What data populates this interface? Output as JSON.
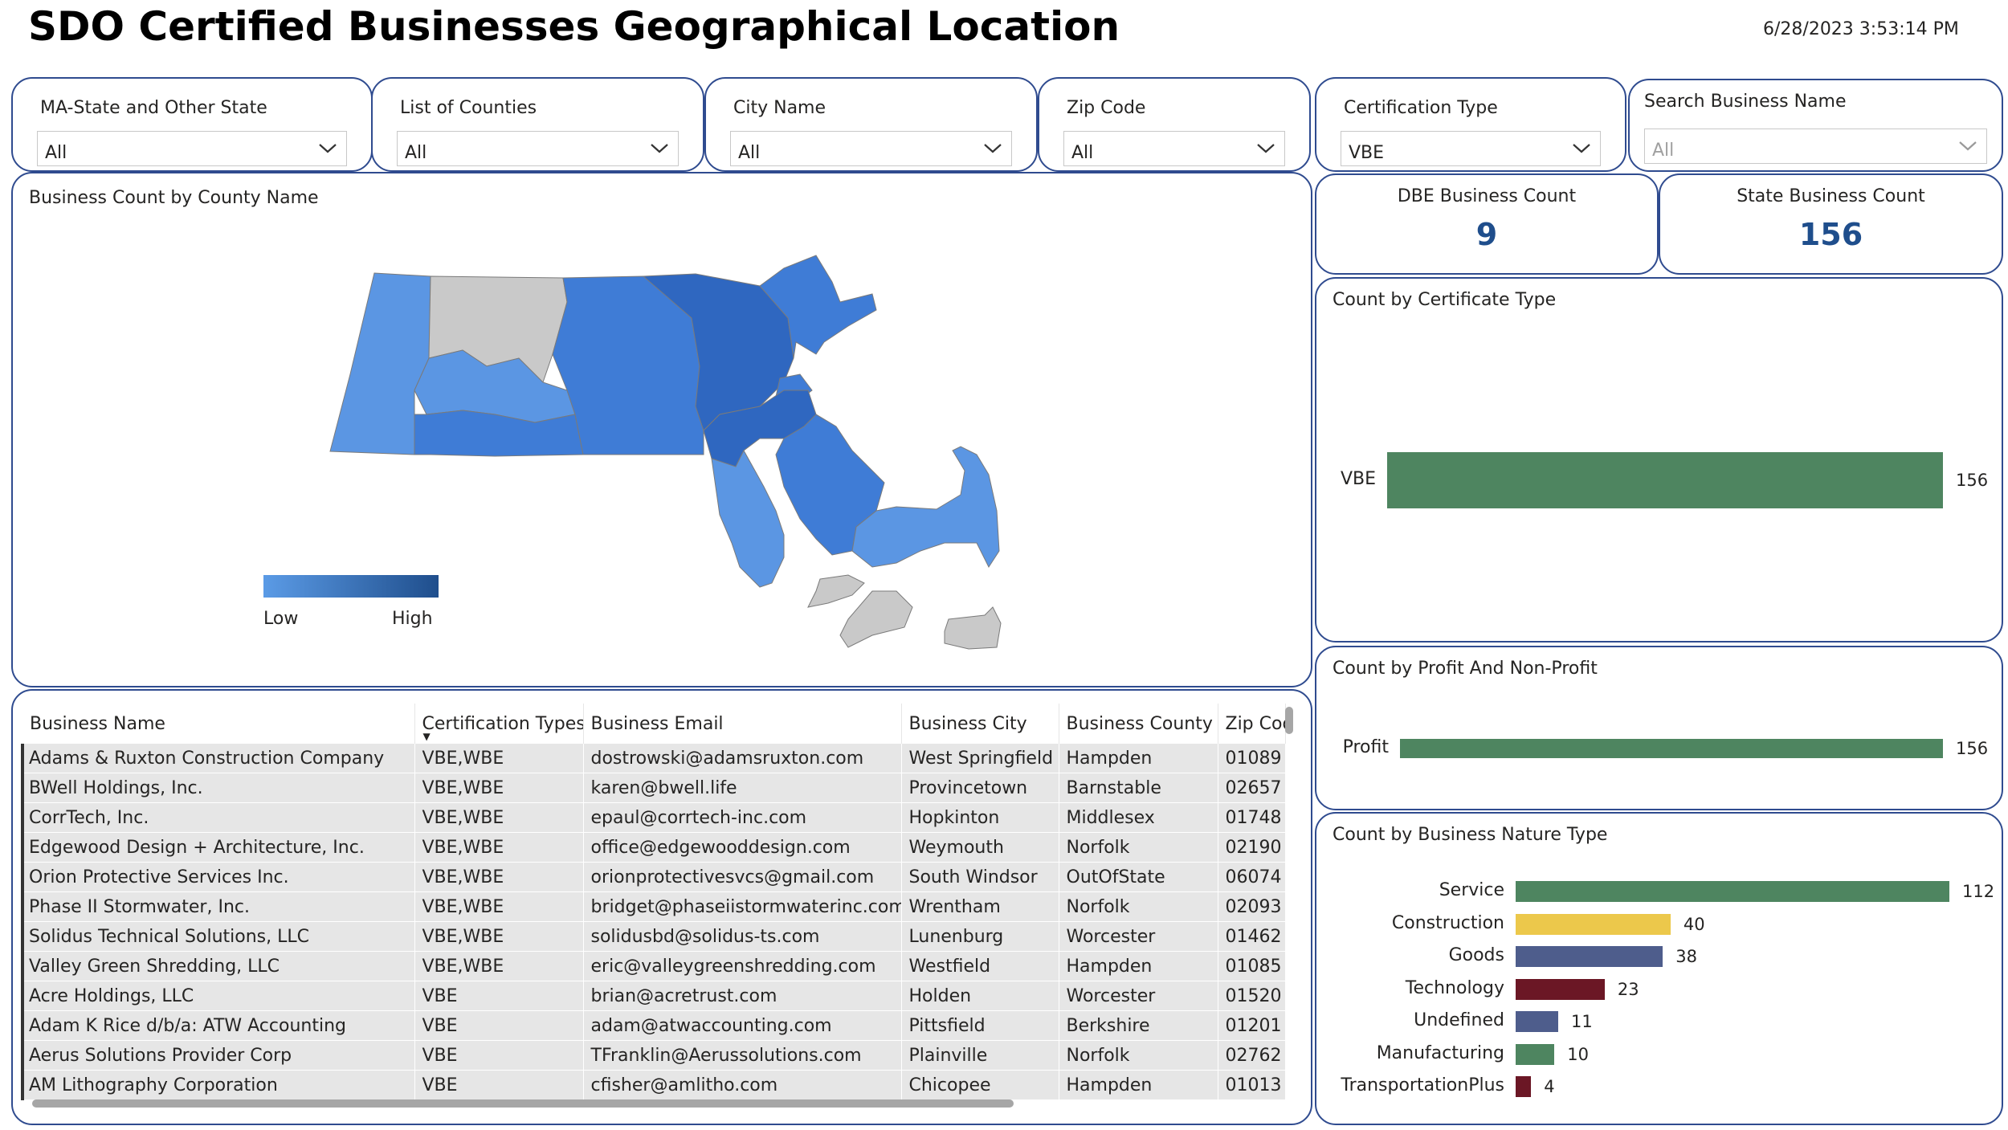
{
  "header": {
    "title": "SDO Certified Businesses Geographical Location",
    "timestamp": "6/28/2023 3:53:14 PM"
  },
  "slicers": [
    {
      "label": "MA-State and Other State",
      "value": "All"
    },
    {
      "label": "List of Counties",
      "value": "All"
    },
    {
      "label": "City Name",
      "value": "All"
    },
    {
      "label": "Zip Code",
      "value": "All"
    },
    {
      "label": "Certification Type",
      "value": "VBE"
    },
    {
      "label": "Search Business Name",
      "placeholder": "All"
    }
  ],
  "map": {
    "title": "Business Count by County Name",
    "legend": {
      "low": "Low",
      "high": "High",
      "low_color": "#5b9be6",
      "high_color": "#1f4e8c"
    }
  },
  "kpis": {
    "dbe": {
      "label": "DBE Business Count",
      "value": "9"
    },
    "state": {
      "label": "State Business Count",
      "value": "156"
    }
  },
  "chart_data": [
    {
      "type": "bar",
      "title": "Count by Certificate Type",
      "categories": [
        "VBE"
      ],
      "values": [
        156
      ],
      "colors": [
        "#4e8560"
      ]
    },
    {
      "type": "bar",
      "title": "Count by Profit And Non-Profit",
      "categories": [
        "Profit"
      ],
      "values": [
        156
      ],
      "colors": [
        "#4e8560"
      ]
    },
    {
      "type": "bar",
      "title": "Count by Business Nature Type",
      "categories": [
        "Service",
        "Construction",
        "Goods",
        "Technology",
        "Undefined",
        "Manufacturing",
        "TransportationPlus"
      ],
      "values": [
        112,
        40,
        38,
        23,
        11,
        10,
        4
      ],
      "colors": [
        "#4e8560",
        "#ecc84b",
        "#4e5d8c",
        "#6b1725",
        "#4e5d8c",
        "#4e8560",
        "#6b1725"
      ]
    }
  ],
  "table": {
    "columns": [
      "Business Name",
      "Certification Types",
      "Business Email",
      "Business City",
      "Business County",
      "Zip Code"
    ],
    "rows": [
      [
        "Adams & Ruxton Construction Company",
        "VBE,WBE",
        "dostrowski@adamsruxton.com",
        "West Springfield",
        "Hampden",
        "01089"
      ],
      [
        "BWell Holdings, Inc.",
        "VBE,WBE",
        "karen@bwell.life",
        "Provincetown",
        "Barnstable",
        "02657"
      ],
      [
        "CorrTech, Inc.",
        "VBE,WBE",
        "epaul@corrtech-inc.com",
        "Hopkinton",
        "Middlesex",
        "01748"
      ],
      [
        "Edgewood Design + Architecture, Inc.",
        "VBE,WBE",
        "office@edgewooddesign.com",
        "Weymouth",
        "Norfolk",
        "02190"
      ],
      [
        "Orion Protective Services Inc.",
        "VBE,WBE",
        "orionprotectivesvcs@gmail.com",
        "South Windsor",
        "OutOfState",
        "06074"
      ],
      [
        "Phase II Stormwater, Inc.",
        "VBE,WBE",
        "bridget@phaseiistormwaterinc.com",
        "Wrentham",
        "Norfolk",
        "02093"
      ],
      [
        "Solidus Technical Solutions, LLC",
        "VBE,WBE",
        "solidusbd@solidus-ts.com",
        "Lunenburg",
        "Worcester",
        "01462"
      ],
      [
        "Valley Green Shredding, LLC",
        "VBE,WBE",
        "eric@valleygreenshredding.com",
        "Westfield",
        "Hampden",
        "01085"
      ],
      [
        "Acre Holdings, LLC",
        "VBE",
        "brian@acretrust.com",
        "Holden",
        "Worcester",
        "01520"
      ],
      [
        "Adam K Rice d/b/a: ATW Accounting",
        "VBE",
        "adam@atwaccounting.com",
        "Pittsfield",
        "Berkshire",
        "01201"
      ],
      [
        "Aerus Solutions Provider Corp",
        "VBE",
        "TFranklin@Aerussolutions.com",
        "Plainville",
        "Norfolk",
        "02762"
      ],
      [
        "AM Lithography Corporation",
        "VBE",
        "cfisher@amlitho.com",
        "Chicopee",
        "Hampden",
        "01013"
      ]
    ]
  }
}
